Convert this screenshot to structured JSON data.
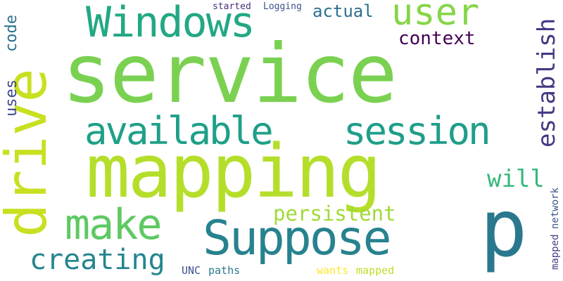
{
  "words": [
    {
      "text": "service",
      "color": "#7ad151"
    },
    {
      "text": "mapping",
      "color": "#b5de2b"
    },
    {
      "text": "drive",
      "color": "#c8e020"
    },
    {
      "text": "Windows",
      "color": "#22a884"
    },
    {
      "text": "user",
      "color": "#86d549"
    },
    {
      "text": "available",
      "color": "#1fa088"
    },
    {
      "text": "session",
      "color": "#1f9e89"
    },
    {
      "text": "Suppose",
      "color": "#26828e"
    },
    {
      "text": "p",
      "color": "#2a788e"
    },
    {
      "text": "make",
      "color": "#5ec962"
    },
    {
      "text": "persistent",
      "color": "#a0da39"
    },
    {
      "text": "creating",
      "color": "#25858e"
    },
    {
      "text": "establish",
      "color": "#443a83"
    },
    {
      "text": "context",
      "color": "#440154"
    },
    {
      "text": "actual",
      "color": "#2d708e"
    },
    {
      "text": "uses",
      "color": "#3e4a89"
    },
    {
      "text": "code",
      "color": "#2c728e"
    },
    {
      "text": "will",
      "color": "#35b779"
    },
    {
      "text": "started",
      "color": "#472d7b"
    },
    {
      "text": "Logging",
      "color": "#3b528b"
    },
    {
      "text": "UNC",
      "color": "#3b528b"
    },
    {
      "text": "paths",
      "color": "#2a788e"
    },
    {
      "text": "wants",
      "color": "#fde725"
    },
    {
      "text": "mapped",
      "color": "#bddf26"
    },
    {
      "text": "mapped",
      "color": "#433e85"
    },
    {
      "text": "network",
      "color": "#39568c"
    }
  ]
}
